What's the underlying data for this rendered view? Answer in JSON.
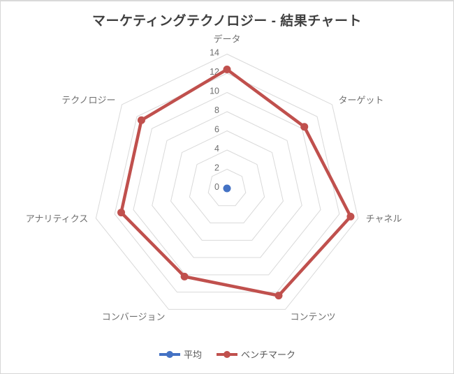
{
  "chart": {
    "title": "マーケティングテクノロジー - 結果チャート"
  },
  "chart_data": {
    "type": "radar",
    "title": "マーケティングテクノロジー - 結果チャート",
    "categories": [
      "データ",
      "ターゲット",
      "チャネル",
      "コンテンツ",
      "コンバージョン",
      "アナリティクス",
      "テクノロジー"
    ],
    "series": [
      {
        "key": "average",
        "name": "平均",
        "color": "#4472C4",
        "values": [
          0,
          0,
          0,
          0,
          0,
          0,
          0
        ]
      },
      {
        "key": "benchmark",
        "name": "ベンチマーク",
        "color": "#C0504D",
        "values": [
          12.4,
          10.3,
          13.2,
          12.4,
          10.2,
          11.3,
          11.4
        ]
      }
    ],
    "axis": {
      "min": 0,
      "max": 14,
      "tick_interval": 2,
      "tick_labels": [
        "0",
        "2",
        "4",
        "6",
        "8",
        "10",
        "12",
        "14"
      ]
    },
    "gridline_color": "#D9D9D9",
    "grid": "concentric-polygons-only",
    "legend_position": "bottom"
  }
}
